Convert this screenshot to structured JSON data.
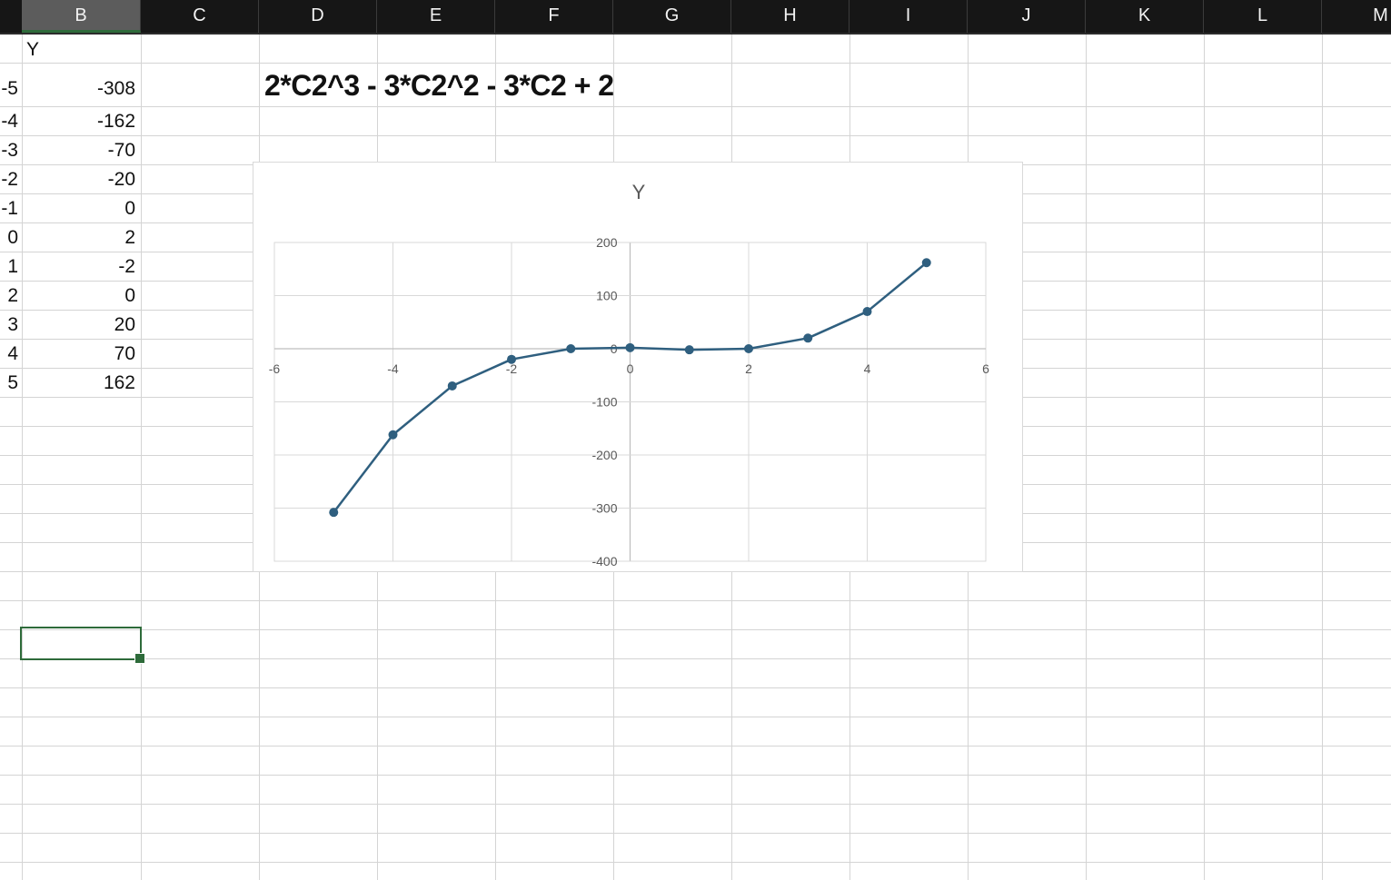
{
  "columns": [
    {
      "id": "B",
      "label": "B",
      "selected": true
    },
    {
      "id": "C",
      "label": "C"
    },
    {
      "id": "D",
      "label": "D"
    },
    {
      "id": "E",
      "label": "E"
    },
    {
      "id": "F",
      "label": "F"
    },
    {
      "id": "G",
      "label": "G"
    },
    {
      "id": "H",
      "label": "H"
    },
    {
      "id": "I",
      "label": "I"
    },
    {
      "id": "J",
      "label": "J"
    },
    {
      "id": "K",
      "label": "K"
    },
    {
      "id": "L",
      "label": "L"
    },
    {
      "id": "M",
      "label": "M"
    }
  ],
  "sheet": {
    "header_y": "Y",
    "x_values": [
      "-5",
      "-4",
      "-3",
      "-2",
      "-1",
      "0",
      "1",
      "2",
      "3",
      "4",
      "5"
    ],
    "y_values": [
      "-308",
      "-162",
      "-70",
      "-20",
      "0",
      "2",
      "-2",
      "0",
      "20",
      "70",
      "162"
    ],
    "formula_text": "2*C2^3 - 3*C2^2 - 3*C2 + 2"
  },
  "colors": {
    "series": "#2f5f7f",
    "selection": "#2e6b3a",
    "header_bg": "#161616"
  },
  "chart_data": {
    "type": "scatter",
    "title": "Y",
    "x": [
      -5,
      -4,
      -3,
      -2,
      -1,
      0,
      1,
      2,
      3,
      4,
      5
    ],
    "series": [
      {
        "name": "",
        "values": [
          -308,
          -162,
          -70,
          -20,
          0,
          2,
          -2,
          0,
          20,
          70,
          162
        ]
      }
    ],
    "xlim": [
      -6,
      6
    ],
    "ylim": [
      -400,
      200
    ],
    "x_ticks": [
      -6,
      -4,
      -2,
      0,
      2,
      4,
      6
    ],
    "y_ticks": [
      200,
      100,
      0,
      -100,
      -200,
      -300,
      -400
    ],
    "lines_connected": true,
    "grid": true,
    "legend": "none"
  }
}
